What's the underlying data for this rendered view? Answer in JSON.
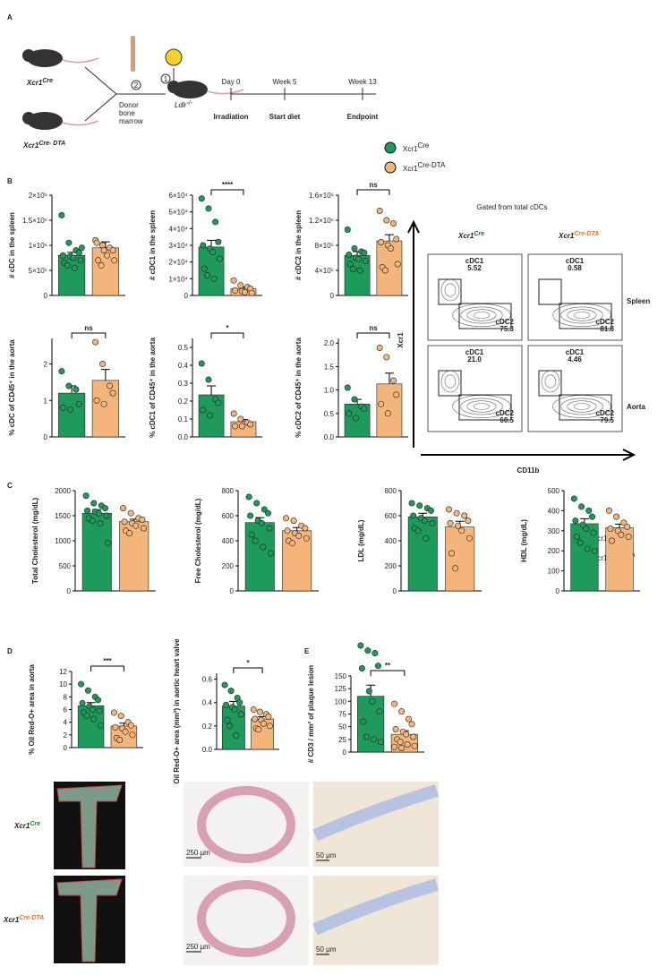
{
  "panels": [
    "A",
    "B",
    "C",
    "D",
    "E"
  ],
  "legend": [
    {
      "name": "Xcr1",
      "sup": "Cre",
      "color": "#1e9a5a"
    },
    {
      "name": "Xcr1",
      "sup": "Cre-DTA",
      "color": "#f4b57a"
    }
  ],
  "schematic": {
    "mouse1": {
      "name": "Xcr1",
      "sup": "Cre"
    },
    "mouse2": {
      "name": "Xcr1",
      "sup": "Cre- DTA"
    },
    "step1": "1",
    "step2": "2",
    "donor": [
      "Donor",
      "bone",
      "marrow"
    ],
    "recipient": {
      "name": "Ldlr",
      "sup": "-/-"
    },
    "timeline": [
      {
        "time": "Day 0",
        "event": "Irradiation"
      },
      {
        "time": "Week 5",
        "event": "Start diet"
      },
      {
        "time": "Week 13",
        "event": "Endpoint"
      }
    ]
  },
  "flow": {
    "title": "Gated from total cDCs",
    "columns": [
      {
        "name": "Xcr1",
        "sup": "Cre"
      },
      {
        "name": "Xcr1",
        "sup": "Cre-DTA"
      }
    ],
    "rows": [
      "Spleen",
      "Aorta"
    ],
    "y_axis": "Xcr1",
    "x_axis": "CD11b",
    "gates": [
      [
        [
          "cDC1",
          "5.52",
          "cDC2",
          "75.3"
        ],
        [
          "cDC1",
          "0.58",
          "cDC2",
          "81.8"
        ]
      ],
      [
        [
          "cDC1",
          "21.0",
          "cDC2",
          "60.5"
        ],
        [
          "cDC1",
          "4.46",
          "cDC2",
          "79.5"
        ]
      ]
    ]
  },
  "images": {
    "rows": [
      {
        "name": "Xcr1",
        "sup": "Cre"
      },
      {
        "name": "Xcr1",
        "sup": "Cre-DTA"
      }
    ],
    "scales": [
      "250 µm",
      "250 µm",
      "50 µm",
      "50 µm"
    ]
  },
  "chart_data": [
    {
      "type": "bar",
      "ylabel": "# cDC in the spleen",
      "ylim": [
        0,
        2000000
      ],
      "yticks": [
        0,
        {
          "value": 500000,
          "label": "5×10⁵"
        },
        {
          "value": 1000000,
          "label": "1×10⁶"
        },
        {
          "value": 1500000,
          "label": "1.5×10⁶"
        },
        {
          "value": 2000000,
          "label": "2×10⁶"
        }
      ],
      "values": [
        800000,
        950000
      ],
      "errors": [
        60000,
        120000
      ],
      "points": [
        [
          1600000,
          1050000,
          900000,
          850000,
          800000,
          780000,
          750000,
          700000,
          650000,
          600000,
          550000,
          950000
        ],
        [
          1100000,
          1000000,
          950000,
          900000,
          1050000,
          900000,
          800000,
          700000,
          700000,
          600000
        ]
      ]
    },
    {
      "type": "bar",
      "ylabel": "# cDC1 in the spleen",
      "ylim": [
        0,
        60000
      ],
      "yticks": [
        0,
        {
          "value": 10000,
          "label": "1×10⁴"
        },
        {
          "value": 20000,
          "label": "2×10⁴"
        },
        {
          "value": 30000,
          "label": "3×10⁴"
        },
        {
          "value": 40000,
          "label": "4×10⁴"
        },
        {
          "value": 50000,
          "label": "5×10⁴"
        },
        {
          "value": 60000,
          "label": "6×10⁴"
        }
      ],
      "values": [
        29000,
        4000
      ],
      "errors": [
        4000,
        1000
      ],
      "points": [
        [
          58000,
          52000,
          44000,
          32000,
          30000,
          28000,
          26000,
          22000,
          16000,
          12000,
          10000
        ],
        [
          9000,
          6000,
          5000,
          4000,
          3000,
          2500,
          2000,
          1500
        ]
      ],
      "annotation": "****"
    },
    {
      "type": "bar",
      "ylabel": "# cDC2 in the spleen",
      "ylim": [
        0,
        1600000
      ],
      "yticks": [
        0,
        {
          "value": 400000,
          "label": "4×10⁵"
        },
        {
          "value": 800000,
          "label": "8×10⁵"
        },
        {
          "value": 1200000,
          "label": "1.2×10⁶"
        },
        {
          "value": 1600000,
          "label": "1.6×10⁶"
        }
      ],
      "values": [
        640000,
        870000
      ],
      "errors": [
        60000,
        100000
      ],
      "points": [
        [
          1050000,
          750000,
          700000,
          680000,
          650000,
          600000,
          580000,
          550000,
          500000,
          420000,
          400000
        ],
        [
          1350000,
          1200000,
          1150000,
          900000,
          850000,
          800000,
          750000,
          500000,
          450000,
          400000
        ]
      ],
      "annotation": "ns"
    },
    {
      "type": "bar",
      "ylabel": "% cDC of CD45⁺ in the aorta",
      "ylim": [
        0,
        2.7
      ],
      "yticks": [
        0,
        1,
        2
      ],
      "values": [
        1.2,
        1.55
      ],
      "errors": [
        0.2,
        0.3
      ],
      "points": [
        [
          1.8,
          1.4,
          1.3,
          0.9,
          0.8,
          0.75
        ],
        [
          2.6,
          2.0,
          1.4,
          1.2,
          1.0,
          0.9
        ]
      ],
      "annotation": "ns"
    },
    {
      "type": "bar",
      "ylabel": "% cDC1 of CD45⁺ in the aorta",
      "ylim": [
        0,
        0.55
      ],
      "yticks": [
        {
          "value": 0,
          "label": "0.0"
        },
        0.1,
        0.2,
        0.3,
        0.4,
        0.5
      ],
      "values": [
        0.235,
        0.085
      ],
      "errors": [
        0.05,
        0.012
      ],
      "points": [
        [
          0.41,
          0.32,
          0.21,
          0.19,
          0.15,
          0.12
        ],
        [
          0.13,
          0.1,
          0.08,
          0.07,
          0.06,
          0.06
        ]
      ],
      "annotation": "*"
    },
    {
      "type": "bar",
      "ylabel": "% cDC2 of CD45⁺ in the aorta",
      "ylim": [
        0,
        2.1
      ],
      "yticks": [
        {
          "value": 0,
          "label": "0.0"
        },
        0.5,
        {
          "value": 1,
          "label": "1.0"
        },
        1.5,
        {
          "value": 2,
          "label": "2.0"
        }
      ],
      "values": [
        0.7,
        1.13
      ],
      "errors": [
        0.1,
        0.23
      ],
      "points": [
        [
          1.05,
          0.8,
          0.65,
          0.6,
          0.5,
          0.4
        ],
        [
          1.9,
          1.7,
          1.2,
          0.9,
          0.7,
          0.5
        ]
      ],
      "annotation": "ns"
    },
    {
      "type": "bar",
      "ylabel": "Total Cholesterol (mg/dL)",
      "ylim": [
        0,
        2000
      ],
      "yticks": [
        0,
        500,
        1000,
        1500,
        2000
      ],
      "values": [
        1550,
        1380
      ],
      "errors": [
        70,
        50
      ],
      "points": [
        [
          1900,
          1750,
          1700,
          1650,
          1600,
          1580,
          1550,
          1500,
          1450,
          1400,
          1350,
          950
        ],
        [
          1650,
          1550,
          1450,
          1420,
          1380,
          1350,
          1300,
          1250,
          1200,
          1150
        ]
      ]
    },
    {
      "type": "bar",
      "ylabel": "Free Cholesterol (mg/dL)",
      "ylim": [
        0,
        800
      ],
      "yticks": [
        0,
        200,
        400,
        600,
        800
      ],
      "values": [
        545,
        480
      ],
      "errors": [
        40,
        25
      ],
      "points": [
        [
          750,
          700,
          650,
          620,
          600,
          560,
          540,
          500,
          450,
          400,
          350,
          300
        ],
        [
          580,
          560,
          520,
          500,
          480,
          460,
          440,
          420,
          400,
          380
        ]
      ]
    },
    {
      "type": "bar",
      "ylabel": "LDL (mg/dL)",
      "ylim": [
        0,
        800
      ],
      "yticks": [
        0,
        200,
        400,
        600,
        800
      ],
      "values": [
        590,
        510
      ],
      "errors": [
        30,
        45
      ],
      "points": [
        [
          700,
          680,
          660,
          640,
          600,
          580,
          560,
          540,
          500,
          480,
          420
        ],
        [
          650,
          620,
          600,
          560,
          540,
          520,
          480,
          420,
          300,
          180
        ]
      ]
    },
    {
      "type": "bar",
      "ylabel": "HDL (mg/dL)",
      "ylim": [
        0,
        500
      ],
      "yticks": [
        0,
        100,
        200,
        300,
        400,
        500
      ],
      "values": [
        335,
        315
      ],
      "errors": [
        25,
        18
      ],
      "points": [
        [
          460,
          420,
          400,
          370,
          350,
          330,
          310,
          290,
          270,
          240,
          210,
          200
        ],
        [
          400,
          370,
          340,
          320,
          310,
          300,
          280,
          270,
          250
        ]
      ]
    },
    {
      "type": "bar",
      "ylabel": "% Oil Red-O+ area in aorta",
      "ylim": [
        0,
        12
      ],
      "yticks": [
        0,
        2,
        4,
        6,
        8,
        10,
        12
      ],
      "values": [
        6.6,
        3.4
      ],
      "errors": [
        0.5,
        0.45
      ],
      "points": [
        [
          10,
          9,
          8,
          7.5,
          7,
          6.5,
          6,
          5.8,
          5.5,
          5,
          4.5,
          3.5
        ],
        [
          5.5,
          5,
          4,
          3.5,
          3.2,
          3,
          2.5,
          2,
          1.5,
          1.2
        ]
      ],
      "annotation": "***"
    },
    {
      "type": "bar",
      "ylabel": "Oil Red-O+ area (mm²) in aortic heart valve",
      "ylim": [
        0,
        0.65
      ],
      "yticks": [
        {
          "value": 0,
          "label": "0.0"
        },
        0.2,
        0.4,
        0.6
      ],
      "values": [
        0.37,
        0.26
      ],
      "errors": [
        0.04,
        0.02
      ],
      "points": [
        [
          0.55,
          0.5,
          0.44,
          0.4,
          0.38,
          0.36,
          0.34,
          0.3,
          0.25,
          0.2,
          0.12
        ],
        [
          0.34,
          0.32,
          0.3,
          0.28,
          0.26,
          0.25,
          0.22,
          0.2,
          0.18,
          0.17
        ]
      ],
      "annotation": "*"
    },
    {
      "type": "bar",
      "ylabel": "# CD3 / mm² of plaque lesion",
      "ylim": [
        0,
        150
      ],
      "yticks": [
        0,
        25,
        50,
        75,
        100,
        125,
        150
      ],
      "values": [
        110,
        35
      ],
      "errors": [
        22,
        7
      ],
      "points": [
        [
          210,
          200,
          195,
          170,
          165,
          120,
          100,
          80,
          60,
          30,
          25,
          20
        ],
        [
          95,
          80,
          65,
          55,
          45,
          40,
          35,
          30,
          25,
          20,
          15,
          12,
          10,
          8
        ]
      ],
      "annotation": "**"
    }
  ]
}
